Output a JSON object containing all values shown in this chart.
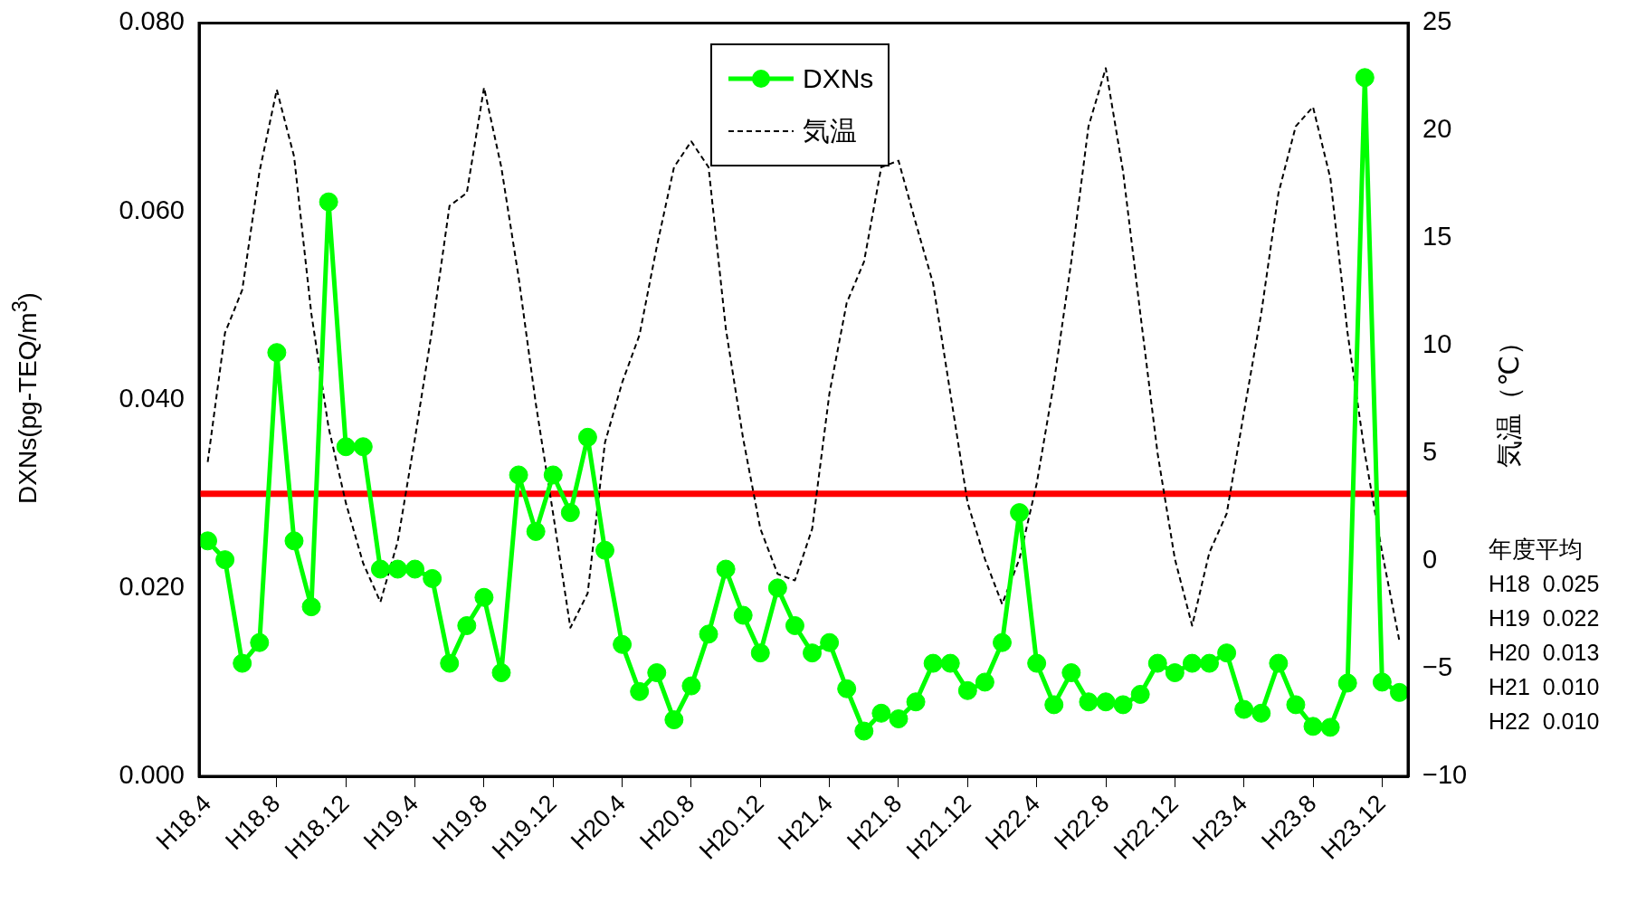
{
  "chart_data": {
    "type": "line",
    "ylabel": "DXNs(pg-TEQ/m$^{3}$)",
    "y2label": "気温（℃）",
    "categories": [
      "H18.4",
      null,
      null,
      null,
      "H18.8",
      null,
      null,
      null,
      "H18.12",
      null,
      null,
      null,
      "H19.4",
      null,
      null,
      null,
      "H19.8",
      null,
      null,
      null,
      "H19.12",
      null,
      null,
      null,
      "H20.4",
      null,
      null,
      null,
      "H20.8",
      null,
      null,
      null,
      "H20.12",
      null,
      null,
      null,
      "H21.4",
      null,
      null,
      null,
      "H21.8",
      null,
      null,
      null,
      "H21.12",
      null,
      null,
      null,
      "H22.4",
      null,
      null,
      null,
      "H22.8",
      null,
      null,
      null,
      "H22.12",
      null,
      null,
      null,
      "H23.4",
      null,
      null,
      null,
      "H23.8",
      null,
      null,
      null,
      "H23.12",
      null
    ],
    "series": [
      {
        "name": "DXNs",
        "color": "#00ff00",
        "marker": "circle",
        "line_style": "solid",
        "values": [
          0.025,
          0.023,
          0.012,
          0.0142,
          0.045,
          0.025,
          0.018,
          0.061,
          0.035,
          0.035,
          0.022,
          0.022,
          0.022,
          0.021,
          0.012,
          0.016,
          0.019,
          0.011,
          0.032,
          0.026,
          0.032,
          0.028,
          0.036,
          0.024,
          0.014,
          0.009,
          0.011,
          0.006,
          0.0096,
          0.0151,
          0.022,
          0.0171,
          0.0131,
          0.02,
          0.016,
          0.0131,
          0.0142,
          0.0093,
          0.0048,
          0.0067,
          0.0061,
          0.0079,
          0.012,
          0.012,
          0.0091,
          0.01,
          0.0142,
          0.028,
          0.012,
          0.0076,
          0.011,
          0.0079,
          0.0079,
          0.0076,
          0.0087,
          0.012,
          0.011,
          0.012,
          0.012,
          0.0131,
          0.0071,
          0.0067,
          0.012,
          0.0076,
          0.0053,
          0.0052,
          0.0099,
          0.0742,
          0.01,
          0.0089
        ]
      },
      {
        "name": "気温",
        "color": "#000000",
        "axis": "y2",
        "marker": "none",
        "line_style": "dashed",
        "values": [
          4.6,
          10.6,
          12.6,
          18.1,
          21.9,
          18.8,
          11.5,
          6.2,
          2.7,
          -0.1,
          -1.9,
          0.9,
          5.7,
          10.8,
          16.5,
          17.1,
          22.0,
          18.3,
          13.2,
          7.3,
          2.2,
          -3.1,
          -1.5,
          5.5,
          8.3,
          10.5,
          14.6,
          18.3,
          19.5,
          18.3,
          10.8,
          5.7,
          1.5,
          -0.6,
          -0.9,
          1.5,
          7.8,
          12.0,
          13.9,
          18.3,
          18.6,
          15.7,
          12.9,
          7.8,
          2.7,
          0.1,
          -2.0,
          0.1,
          3.6,
          8.3,
          13.9,
          20.2,
          22.9,
          18.1,
          11.5,
          5.0,
          0.1,
          -3.0,
          0.4,
          2.2,
          6.9,
          11.5,
          17.1,
          20.2,
          21.1,
          17.8,
          10.6,
          5.0,
          0.4,
          -3.7
        ]
      }
    ],
    "ylim": [
      0,
      0.08
    ],
    "yticks": [
      {
        "value": 0,
        "label": "0.000"
      },
      {
        "value": 0.02,
        "label": "0.020"
      },
      {
        "value": 0.04,
        "label": "0.040"
      },
      {
        "value": 0.06,
        "label": "0.060"
      },
      {
        "value": 0.08,
        "label": "0.080"
      }
    ],
    "y2lim": [
      -10,
      25
    ],
    "y2ticks": [
      {
        "value": -10,
        "label": "−10"
      },
      {
        "value": -5,
        "label": "−5"
      },
      0,
      5,
      10,
      15,
      20,
      25
    ],
    "ref_lines": [
      {
        "axis": "y",
        "value": 0.03,
        "color": "#ff0000"
      }
    ],
    "annotations": [
      "年度平均",
      "H18  0.025",
      "H19  0.022",
      "H20  0.013",
      "H21  0.010",
      "H22  0.010"
    ],
    "grid": false,
    "legend": "top"
  }
}
